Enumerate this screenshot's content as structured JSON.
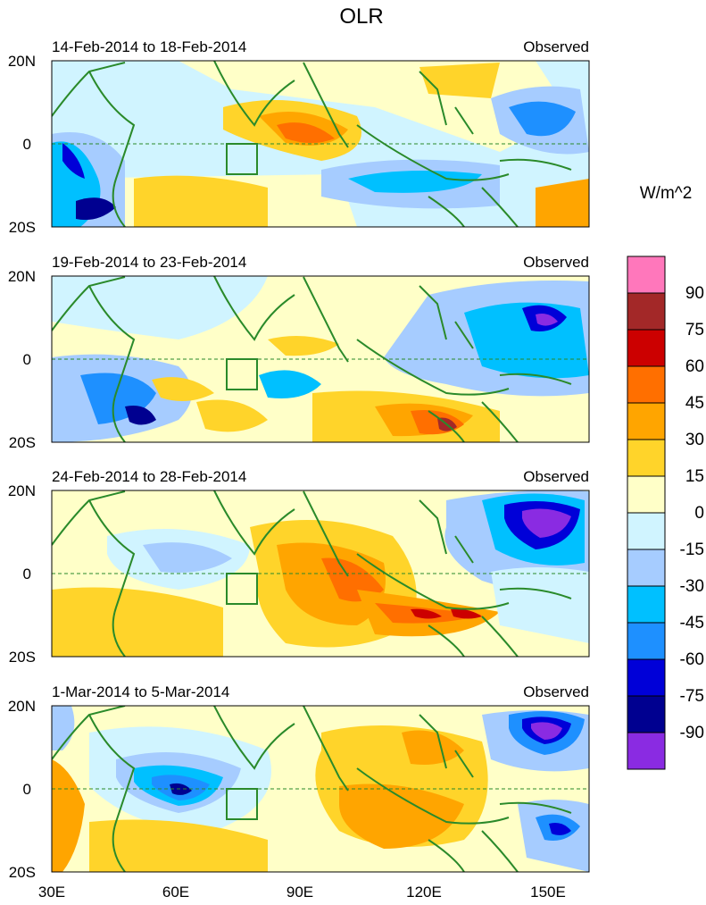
{
  "title": "OLR",
  "units": "W/m^2",
  "panels": [
    {
      "date_range": "14-Feb-2014 to 18-Feb-2014",
      "label": "Observed"
    },
    {
      "date_range": "19-Feb-2014 to 23-Feb-2014",
      "label": "Observed"
    },
    {
      "date_range": "24-Feb-2014 to 28-Feb-2014",
      "label": "Observed"
    },
    {
      "date_range": "1-Mar-2014 to 5-Mar-2014",
      "label": "Observed"
    }
  ],
  "lat_labels": [
    "20N",
    "0",
    "20S"
  ],
  "lon_labels": [
    "30E",
    "60E",
    "90E",
    "120E",
    "150E"
  ],
  "colorbar": {
    "levels": [
      "90",
      "75",
      "60",
      "45",
      "30",
      "15",
      "0",
      "-15",
      "-30",
      "-45",
      "-60",
      "-75",
      "-90"
    ],
    "colors": [
      "#ff77bb",
      "#a32828",
      "#cc0000",
      "#ff6f00",
      "#ffa500",
      "#ffd42a",
      "#ffffc8",
      "#d0f4ff",
      "#a6ccff",
      "#00c0ff",
      "#1e90ff",
      "#0000d8",
      "#000090",
      "#8a2be2"
    ]
  },
  "fill_colors": {
    "land_outline": "#2a8a2a",
    "background": "#ffffc8"
  }
}
